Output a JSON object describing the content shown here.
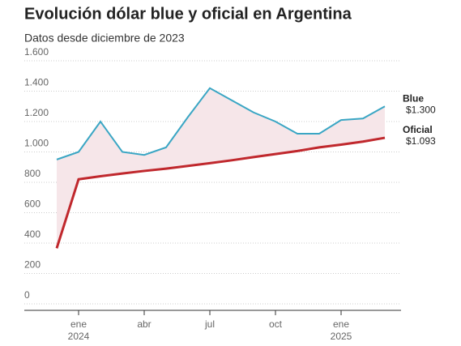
{
  "chart_data": {
    "type": "line",
    "title": "Evolución dólar blue y oficial en Argentina",
    "subtitle": "Datos desde diciembre de 2023",
    "x": [
      "2023-12",
      "2024-01",
      "2024-02",
      "2024-03",
      "2024-04",
      "2024-05",
      "2024-06",
      "2024-07",
      "2024-08",
      "2024-09",
      "2024-10",
      "2024-11",
      "2024-12",
      "2025-01",
      "2025-02",
      "2025-03"
    ],
    "series": [
      {
        "name": "Blue",
        "color": "#3aa6c4",
        "end_label": "$1.300",
        "values": [
          950,
          1000,
          1200,
          1000,
          980,
          1030,
          1230,
          1420,
          1340,
          1260,
          1200,
          1120,
          1120,
          1210,
          1220,
          1300
        ]
      },
      {
        "name": "Oficial",
        "color": "#c0282d",
        "end_label": "$1.093",
        "values": [
          366,
          820,
          840,
          858,
          875,
          890,
          908,
          926,
          945,
          966,
          986,
          1006,
          1030,
          1048,
          1068,
          1093
        ]
      }
    ],
    "xlim": [
      "2023-12",
      "2025-03"
    ],
    "xticks": [
      {
        "value": "2024-01",
        "label": "ene",
        "year": "2024"
      },
      {
        "value": "2024-04",
        "label": "abr"
      },
      {
        "value": "2024-07",
        "label": "jul"
      },
      {
        "value": "2024-10",
        "label": "oct"
      },
      {
        "value": "2025-01",
        "label": "ene",
        "year": "2025"
      }
    ],
    "ylim": [
      0,
      1600
    ],
    "yticks": [
      0,
      200,
      400,
      600,
      800,
      {
        "value": 1000,
        "label": "1.000"
      },
      {
        "value": 1200,
        "label": "1.200"
      },
      {
        "value": 1400,
        "label": "1.400"
      },
      {
        "value": 1600,
        "label": "1.600"
      }
    ],
    "grid": true
  }
}
